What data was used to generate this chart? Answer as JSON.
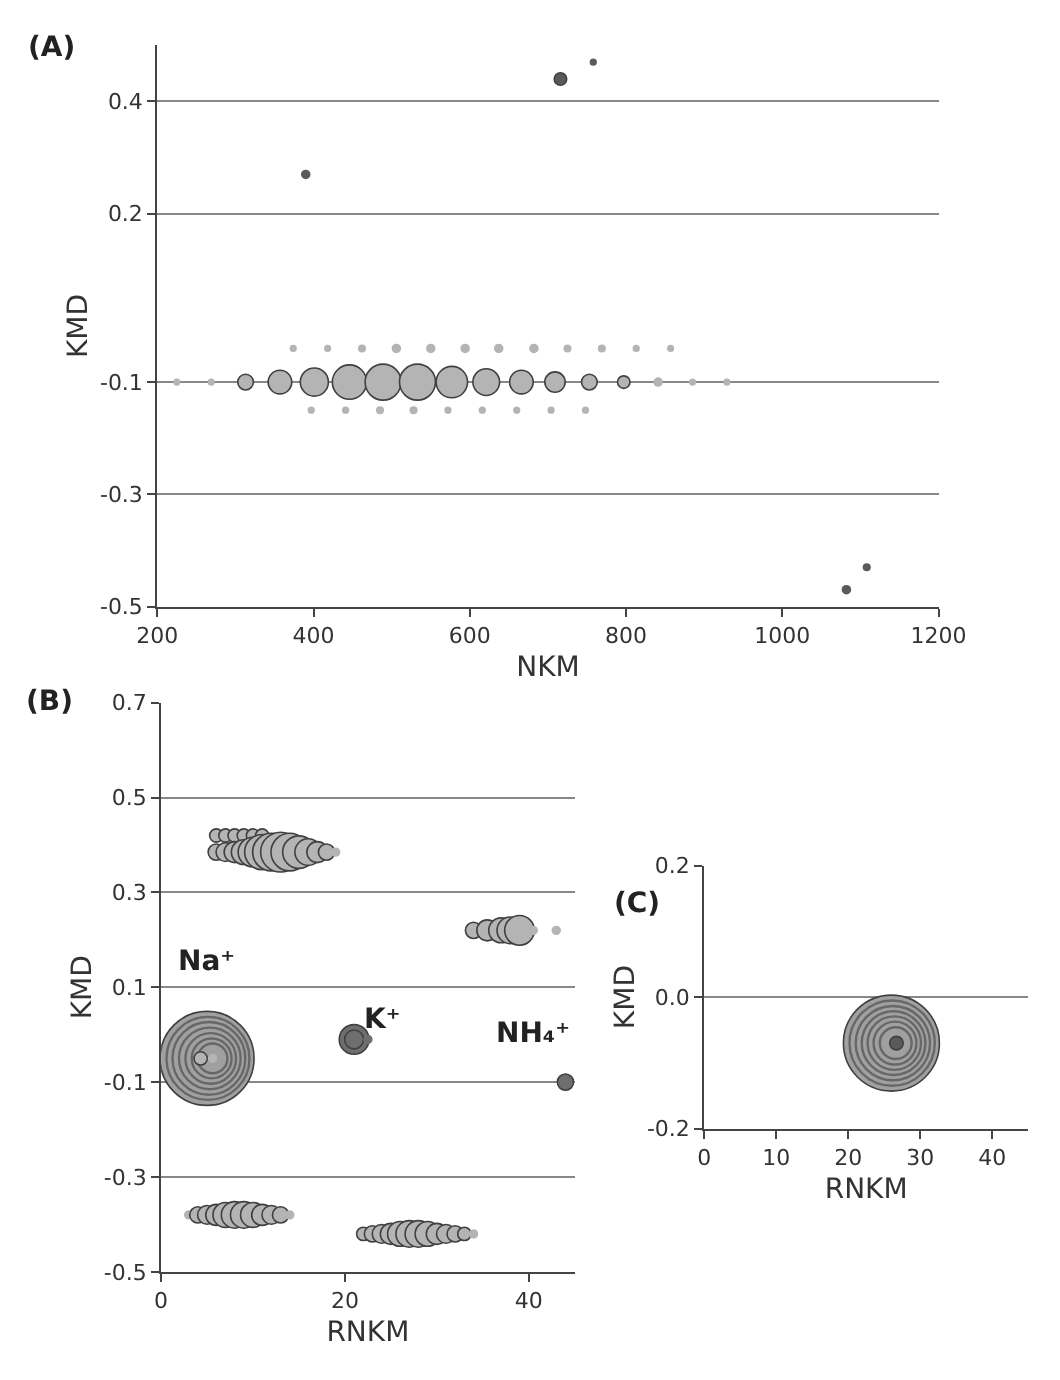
{
  "chart_data": [
    {
      "type": "bubble",
      "title": "(A)",
      "xlabel": "NKM",
      "ylabel": "KMD",
      "xlim": [
        200,
        1200
      ],
      "xticks": [
        200,
        400,
        600,
        800,
        1000,
        1200
      ],
      "ylim": [
        -0.5,
        0.5
      ],
      "yticks": [
        0.4,
        0.2,
        -0.1,
        -0.3,
        -0.5
      ],
      "grid": "y",
      "series": [
        {
          "color": "#b4b4b4",
          "x": [
            225,
            269,
            313,
            357,
            401,
            446,
            489,
            533,
            577,
            621,
            666,
            709,
            753,
            797,
            841,
            885,
            929
          ],
          "values": [
            -0.1,
            -0.1,
            -0.1,
            -0.1,
            -0.1,
            -0.1,
            -0.1,
            -0.1,
            -0.1,
            -0.1,
            -0.1,
            -0.1,
            -0.1,
            -0.1,
            -0.1,
            -0.1,
            -0.1
          ],
          "sizes": [
            0.04,
            0.04,
            0.19,
            0.43,
            0.61,
            0.91,
            1,
            1,
            0.76,
            0.55,
            0.43,
            0.32,
            0.19,
            0.12,
            0.07,
            0.04,
            0.04
          ]
        },
        {
          "color": "#b4b4b4",
          "x": [
            374,
            418,
            462,
            506,
            550,
            594,
            637,
            682,
            725,
            769,
            813,
            857
          ],
          "values": [
            -0.04,
            -0.04,
            -0.04,
            -0.04,
            -0.04,
            -0.04,
            -0.04,
            -0.04,
            -0.04,
            -0.04,
            -0.04,
            -0.04
          ],
          "sizes": [
            0.04,
            0.04,
            0.05,
            0.07,
            0.07,
            0.07,
            0.07,
            0.07,
            0.05,
            0.05,
            0.04,
            0.04
          ]
        },
        {
          "color": "#b4b4b4",
          "x": [
            397,
            441,
            485,
            528,
            572,
            616,
            660,
            704,
            748
          ],
          "values": [
            -0.15,
            -0.15,
            -0.15,
            -0.15,
            -0.15,
            -0.15,
            -0.15,
            -0.15,
            -0.15
          ],
          "sizes": [
            0.04,
            0.04,
            0.05,
            0.05,
            0.04,
            0.04,
            0.04,
            0.04,
            0.04
          ]
        },
        {
          "color": "#5a5a5a",
          "x": [
            390,
            716,
            758,
            1082,
            1108
          ],
          "values": [
            0.27,
            0.44,
            0.47,
            -0.47,
            -0.43
          ],
          "sizes": [
            0.07,
            0.12,
            0.04,
            0.07,
            0.05
          ]
        }
      ]
    },
    {
      "type": "bubble",
      "title": "(B)",
      "xlabel": "RNKM",
      "ylabel": "KMD",
      "xlim": [
        0,
        45
      ],
      "xticks": [
        0,
        20,
        40
      ],
      "ylim": [
        -0.5,
        0.7
      ],
      "yticks": [
        0.7,
        0.5,
        0.3,
        0.1,
        -0.1,
        -0.3,
        -0.5
      ],
      "grid": "y",
      "annotations": [
        "Na⁺",
        "K⁺",
        "NH₄⁺"
      ],
      "series": [
        {
          "color": "#b4b4b4",
          "x": [
            6,
            7,
            8,
            9,
            10,
            11
          ],
          "values": [
            0.42,
            0.42,
            0.42,
            0.42,
            0.42,
            0.42
          ],
          "sizes": [
            0.02,
            0.02,
            0.02,
            0.02,
            0.02,
            0.02
          ]
        },
        {
          "color": "#b4b4b4",
          "x": [
            6,
            7,
            8,
            9,
            10,
            11,
            12,
            13,
            14,
            15,
            16,
            17,
            18,
            19
          ],
          "values": [
            0.385,
            0.385,
            0.385,
            0.385,
            0.385,
            0.385,
            0.385,
            0.385,
            0.385,
            0.385,
            0.385,
            0.385,
            0.385,
            0.385
          ],
          "sizes": [
            0.03,
            0.04,
            0.05,
            0.07,
            0.1,
            0.14,
            0.16,
            0.18,
            0.16,
            0.12,
            0.08,
            0.05,
            0.03,
            0.01
          ]
        },
        {
          "color": "#b4b4b4",
          "x": [
            34,
            35.5,
            37,
            38,
            39,
            40.5,
            43
          ],
          "values": [
            0.22,
            0.22,
            0.22,
            0.22,
            0.22,
            0.22,
            0.22
          ],
          "sizes": [
            0.03,
            0.05,
            0.07,
            0.08,
            0.1,
            0.01,
            0.01
          ]
        },
        {
          "color": "#b4b4b4",
          "x": [
            3,
            4,
            5,
            6,
            7,
            8,
            9,
            10,
            11,
            12,
            13,
            14
          ],
          "values": [
            -0.38,
            -0.38,
            -0.38,
            -0.38,
            -0.38,
            -0.38,
            -0.38,
            -0.38,
            -0.38,
            -0.38,
            -0.38,
            -0.38
          ],
          "sizes": [
            0.01,
            0.03,
            0.04,
            0.05,
            0.07,
            0.08,
            0.08,
            0.07,
            0.05,
            0.04,
            0.03,
            0.01
          ]
        },
        {
          "color": "#b4b4b4",
          "x": [
            22,
            23,
            24,
            25,
            26,
            27,
            28,
            29,
            30,
            31,
            32,
            33,
            34
          ],
          "values": [
            -0.42,
            -0.42,
            -0.42,
            -0.42,
            -0.42,
            -0.42,
            -0.42,
            -0.42,
            -0.42,
            -0.42,
            -0.42,
            -0.42,
            -0.42
          ],
          "sizes": [
            0.02,
            0.03,
            0.04,
            0.05,
            0.07,
            0.08,
            0.08,
            0.07,
            0.05,
            0.04,
            0.03,
            0.02,
            0.01
          ]
        },
        {
          "color": "#a0a0a0",
          "x": [
            5
          ],
          "values": [
            -0.05
          ],
          "sizes": [
            1
          ]
        },
        {
          "color": "#505050",
          "x": [
            5.1,
            5.2,
            5.3,
            5.4,
            5.5,
            5.6
          ],
          "values": [
            -0.05,
            -0.05,
            -0.05,
            -0.05,
            -0.05,
            -0.05
          ],
          "sizes": [
            0.78,
            0.6,
            0.43,
            0.29,
            0.18,
            0.1
          ]
        },
        {
          "color": "#b4b4b4",
          "x": [
            4.3,
            5.6
          ],
          "values": [
            -0.05,
            -0.05
          ],
          "sizes": [
            0.02,
            0.01
          ]
        },
        {
          "color": "#6e6e6e",
          "x": [
            21,
            21,
            22.5,
            44
          ],
          "values": [
            -0.01,
            -0.01,
            -0.01,
            -0.1
          ],
          "sizes": [
            0.1,
            0.04,
            0.01,
            0.03
          ]
        }
      ]
    },
    {
      "type": "bubble",
      "title": "(C)",
      "xlabel": "RNKM",
      "ylabel": "KMD",
      "xlim": [
        0,
        45
      ],
      "xticks": [
        0,
        10,
        20,
        30,
        40
      ],
      "ylim": [
        -0.2,
        0.2
      ],
      "yticks": [
        -0.2,
        {
          "value": 0,
          "label": "0.0"
        },
        0.2
      ],
      "grid": "y",
      "series": [
        {
          "color": "#a0a0a0",
          "x": [
            26
          ],
          "values": [
            -0.07
          ],
          "sizes": [
            1
          ]
        },
        {
          "color": "#505050",
          "x": [
            26.1,
            26.2,
            26.3,
            26.4,
            26.5,
            26.6
          ],
          "values": [
            -0.07,
            -0.07,
            -0.07,
            -0.07,
            -0.07,
            -0.07
          ],
          "sizes": [
            0.79,
            0.6,
            0.44,
            0.31,
            0.2,
            0.11
          ]
        },
        {
          "color": "#5a5a5a",
          "x": [
            26.7
          ],
          "values": [
            -0.07
          ],
          "sizes": [
            0.02
          ]
        }
      ]
    }
  ]
}
